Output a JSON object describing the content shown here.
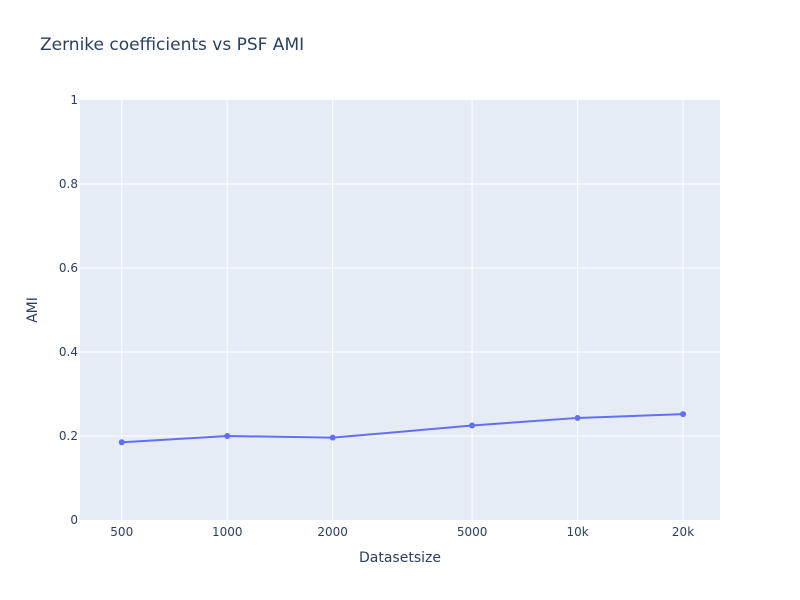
{
  "chart_data": {
    "type": "line",
    "title": "Zernike coefficients vs PSF AMI",
    "xlabel": "Datasetsize",
    "ylabel": "AMI",
    "x_scale": "log",
    "x_range": [
      380,
      25500
    ],
    "ylim": [
      0,
      1
    ],
    "x_ticks": [
      {
        "value": 500,
        "label": "500"
      },
      {
        "value": 1000,
        "label": "1000"
      },
      {
        "value": 2000,
        "label": "2000"
      },
      {
        "value": 5000,
        "label": "5000"
      },
      {
        "value": 10000,
        "label": "10k"
      },
      {
        "value": 20000,
        "label": "20k"
      }
    ],
    "y_ticks": [
      {
        "value": 0,
        "label": "0"
      },
      {
        "value": 0.2,
        "label": "0.2"
      },
      {
        "value": 0.4,
        "label": "0.4"
      },
      {
        "value": 0.6,
        "label": "0.6"
      },
      {
        "value": 0.8,
        "label": "0.8"
      },
      {
        "value": 1,
        "label": "1"
      }
    ],
    "grid": true,
    "colors": {
      "plot_bg": "#e5ecf6",
      "series": "#636efa"
    },
    "series": [
      {
        "x": [
          500,
          1000,
          2000,
          5000,
          10000,
          20000
        ],
        "y": [
          0.185,
          0.2,
          0.196,
          0.225,
          0.243,
          0.252
        ]
      }
    ]
  }
}
